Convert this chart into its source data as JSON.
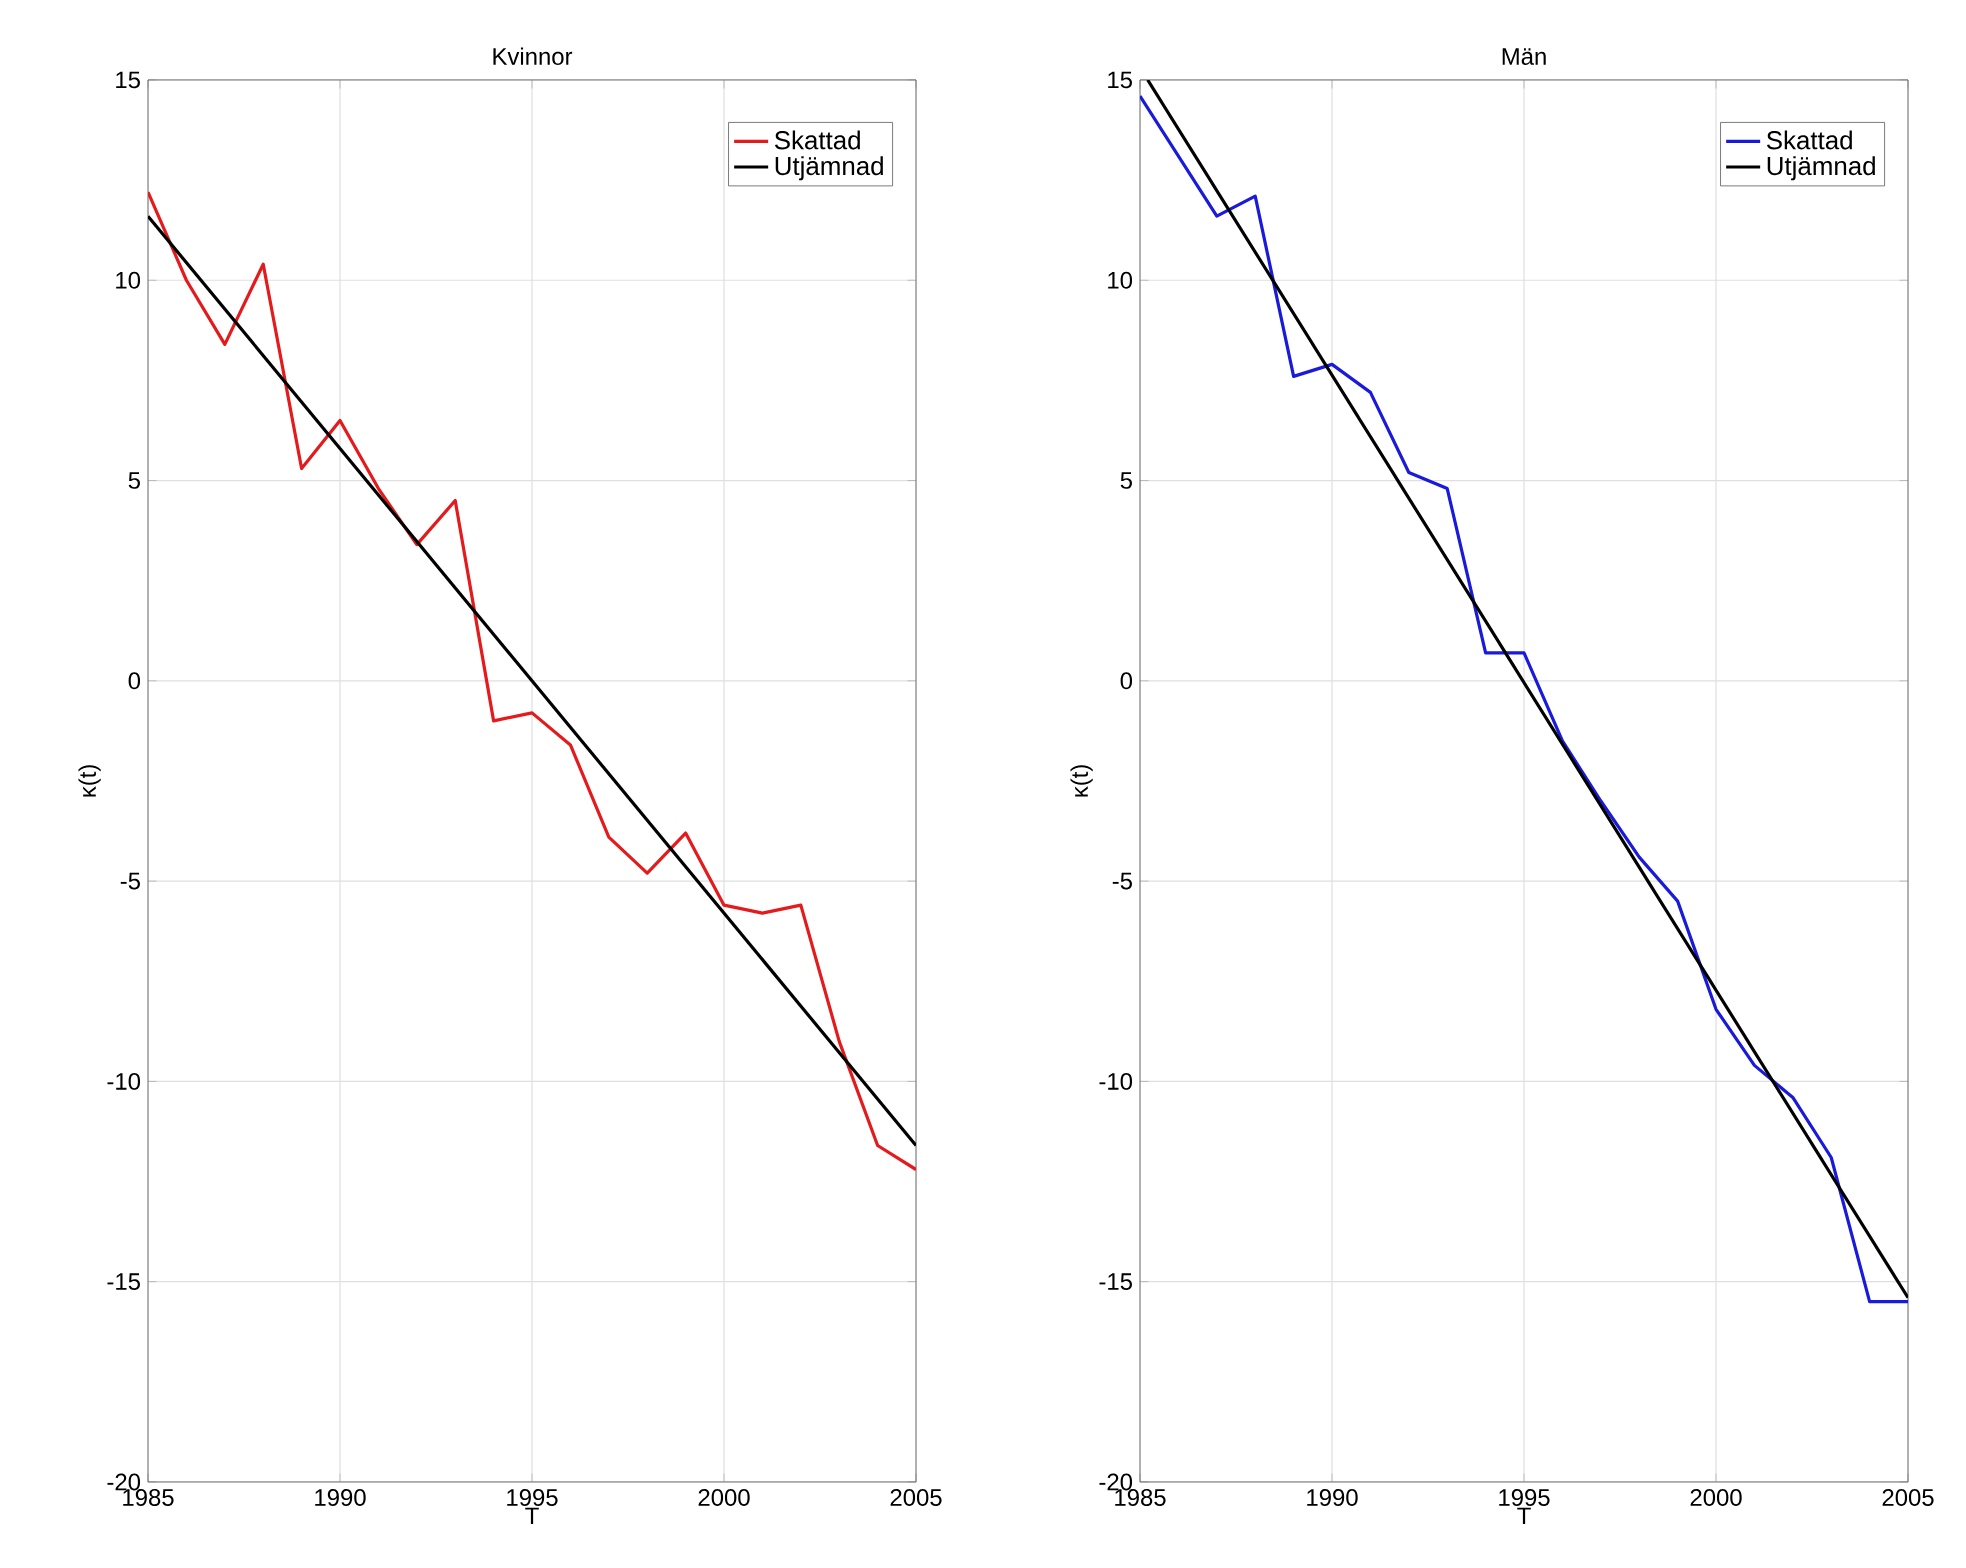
{
  "chart_data": [
    {
      "type": "line",
      "title": "Kvinnor",
      "xlabel": "T",
      "ylabel": "κ(t)",
      "x": [
        1985,
        1986,
        1987,
        1988,
        1989,
        1990,
        1991,
        1992,
        1993,
        1994,
        1995,
        1996,
        1997,
        1998,
        1999,
        2000,
        2001,
        2002,
        2003,
        2004,
        2005
      ],
      "series": [
        {
          "name": "Skattad",
          "color": "#e41a1c",
          "values": [
            12.2,
            10.0,
            8.4,
            10.4,
            5.3,
            6.5,
            4.8,
            3.4,
            4.5,
            -1.0,
            -0.8,
            -1.6,
            -3.9,
            -4.8,
            -3.8,
            -5.6,
            -5.8,
            -5.6,
            -9.0,
            -11.6,
            -12.2
          ]
        },
        {
          "name": "Utjämnad",
          "color": "#000000",
          "x": [
            1985,
            2005
          ],
          "values": [
            11.6,
            -11.6
          ]
        }
      ],
      "xlim": [
        1985,
        2005
      ],
      "ylim": [
        -20,
        15
      ],
      "xticks": [
        1985,
        1990,
        1995,
        2000,
        2005
      ],
      "yticks": [
        -20,
        -15,
        -10,
        -5,
        0,
        5,
        10,
        15
      ],
      "grid": true,
      "legend": "top right",
      "line_style": "solid"
    },
    {
      "type": "line",
      "title": "Män",
      "xlabel": "T",
      "ylabel": "κ(t)",
      "x": [
        1985,
        1986,
        1987,
        1988,
        1989,
        1990,
        1991,
        1992,
        1993,
        1994,
        1995,
        1996,
        1997,
        1998,
        1999,
        2000,
        2001,
        2002,
        2003,
        2004,
        2005
      ],
      "series": [
        {
          "name": "Skattad",
          "color": "#1a1adb",
          "values": [
            14.6,
            13.1,
            11.6,
            12.1,
            7.6,
            7.9,
            7.2,
            5.2,
            4.8,
            0.7,
            0.7,
            -1.5,
            -3.0,
            -4.4,
            -5.5,
            -8.2,
            -9.6,
            -10.4,
            -11.9,
            -15.5,
            -15.5
          ]
        },
        {
          "name": "Utjämnad",
          "color": "#000000",
          "x": [
            1985.2,
            2005
          ],
          "values": [
            15,
            -15.4
          ]
        }
      ],
      "xlim": [
        1985,
        2005
      ],
      "ylim": [
        -20,
        15
      ],
      "xticks": [
        1985,
        1990,
        1995,
        2000,
        2005
      ],
      "yticks": [
        -20,
        -15,
        -10,
        -5,
        0,
        5,
        10,
        15
      ],
      "grid": true,
      "legend": "top right",
      "line_style": "solid"
    }
  ]
}
